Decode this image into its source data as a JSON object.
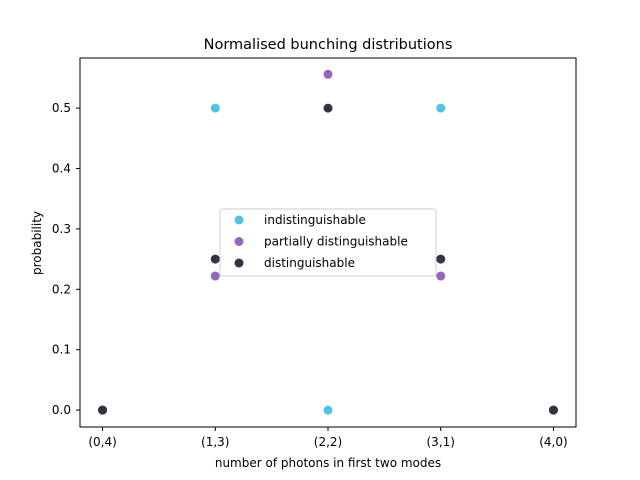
{
  "chart_data": {
    "type": "scatter",
    "title": "Normalised bunching distributions",
    "xlabel": "number of photons in first two modes",
    "ylabel": "probability",
    "categories": [
      "(0,4)",
      "(1,3)",
      "(2,2)",
      "(3,1)",
      "(4,0)"
    ],
    "ylim": [
      -0.028,
      0.583
    ],
    "yticks": [
      0.0,
      0.1,
      0.2,
      0.3,
      0.4,
      0.5
    ],
    "ytick_labels": [
      "0.0",
      "0.1",
      "0.2",
      "0.3",
      "0.4",
      "0.5"
    ],
    "grid": false,
    "legend_position": "center",
    "series": [
      {
        "name": "indistinguishable",
        "color": "#4fc3e3",
        "values": [
          0.0,
          0.5,
          0.0,
          0.5,
          0.0
        ]
      },
      {
        "name": "partially distinguishable",
        "color": "#9467bd",
        "values": [
          0.0,
          0.222,
          0.556,
          0.222,
          0.0
        ]
      },
      {
        "name": "distinguishable",
        "color": "#2e3440",
        "values": [
          0.0,
          0.25,
          0.5,
          0.25,
          0.0
        ]
      }
    ]
  }
}
